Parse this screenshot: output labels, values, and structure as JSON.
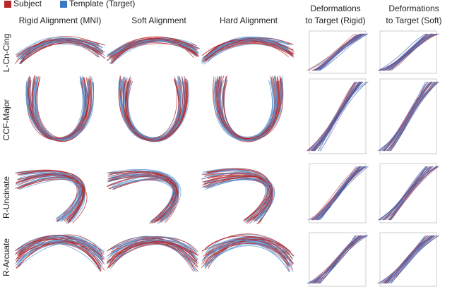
{
  "legend": {
    "items": [
      "Subject",
      "Template (Target)"
    ]
  },
  "columns": [
    "Rigid Alignment (MNI)",
    "Soft Alignment",
    "Hard Alignment"
  ],
  "deformation_columns": [
    {
      "line1": "Deformations",
      "line2": "to Target (Rigid)"
    },
    {
      "line1": "Deformations",
      "line2": "to Target (Soft)"
    }
  ],
  "rows": [
    "L-Cn-Cing",
    "CCF-Major",
    "R-Uncinate",
    "R-Arcuate"
  ]
}
